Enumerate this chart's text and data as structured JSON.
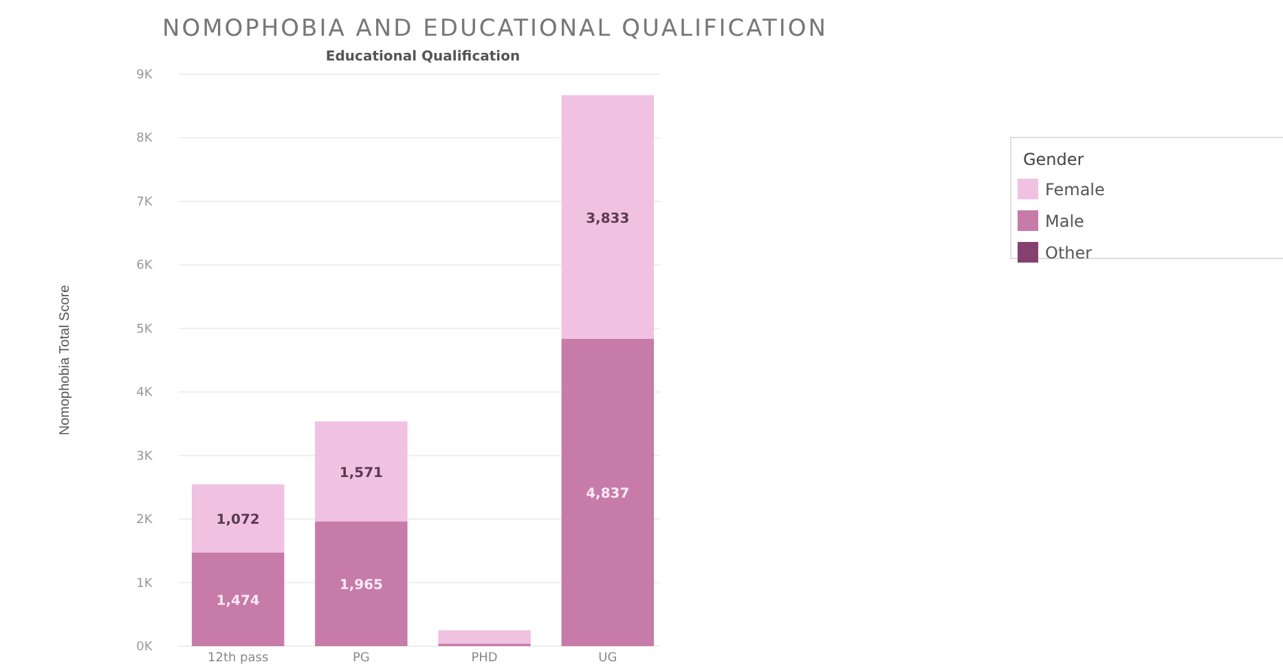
{
  "chart_data": {
    "type": "bar",
    "title": "NOMOPHOBIA AND EDUCATIONAL QUALIFICATION",
    "xlabel": "Educational Qualification",
    "ylabel": "Nomophobia Total Score",
    "legend_title": "Gender",
    "categories": [
      "12th pass",
      "PG",
      "PHD",
      "UG"
    ],
    "stacked": true,
    "series": [
      {
        "name": "Other",
        "color": "#84406f",
        "values": [
          null,
          null,
          null,
          null
        ]
      },
      {
        "name": "Male",
        "color": "#c67ba9",
        "values": [
          1474,
          1965,
          40,
          4837
        ],
        "value_labels": [
          "1,474",
          "1,965",
          null,
          "4,837"
        ]
      },
      {
        "name": "Female",
        "color": "#f0c1e1",
        "values": [
          1072,
          1571,
          210,
          3833
        ],
        "value_labels": [
          "1,072",
          "1,571",
          null,
          "3,833"
        ]
      }
    ],
    "ylim": [
      0,
      9000
    ],
    "yticks": [
      {
        "value": 0,
        "label": "0K"
      },
      {
        "value": 1000,
        "label": "1K"
      },
      {
        "value": 2000,
        "label": "2K"
      },
      {
        "value": 3000,
        "label": "3K"
      },
      {
        "value": 4000,
        "label": "4K"
      },
      {
        "value": 5000,
        "label": "5K"
      },
      {
        "value": 6000,
        "label": "6K"
      },
      {
        "value": 7000,
        "label": "7K"
      },
      {
        "value": 8000,
        "label": "8K"
      },
      {
        "value": 9000,
        "label": "9K"
      }
    ],
    "grid": "y",
    "legend": "top right"
  }
}
